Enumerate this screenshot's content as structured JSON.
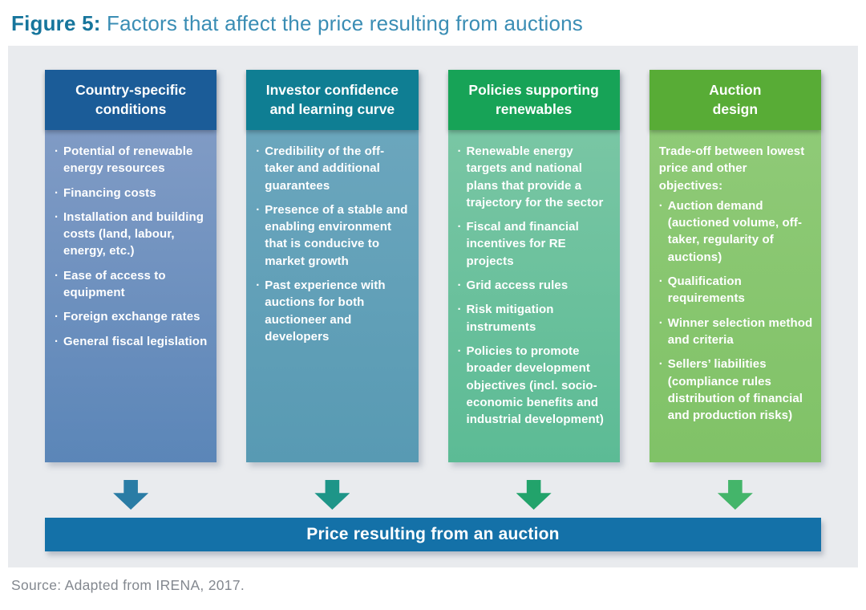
{
  "title": {
    "prefix": "Figure 5:",
    "text": " Factors that affect the price resulting from auctions"
  },
  "columns": [
    {
      "header": "Country-specific\nconditions",
      "header_color": "#1b5c98",
      "body_top_color": "#809bc5",
      "body_bottom_color": "#5b86b8",
      "arrow_color": "#2a7ca5",
      "intro": "",
      "items": [
        "Potential of renewable energy resources",
        "Financing costs",
        "Installation and building costs (land, labour, energy, etc.)",
        "Ease of access to equipment",
        "Foreign exchange rates",
        "General fiscal legislation"
      ]
    },
    {
      "header": "Investor confidence\nand learning curve",
      "header_color": "#0f7e93",
      "body_top_color": "#6ba6bd",
      "body_bottom_color": "#589ab3",
      "arrow_color": "#1e9588",
      "intro": "",
      "items": [
        "Credibility of the off-taker and additional guarantees",
        "Presence of a stable and enabling environment that is conducive to market growth",
        "Past experience with auctions for both auctioneer and developers"
      ]
    },
    {
      "header": "Policies supporting\nrenewables",
      "header_color": "#17a357",
      "body_top_color": "#79c6a4",
      "body_bottom_color": "#5cbb95",
      "arrow_color": "#22a36b",
      "intro": "",
      "items": [
        "Renewable energy targets and national plans that provide a trajectory for the sector",
        "Fiscal and financial incentives for RE projects",
        "Grid access rules",
        "Risk mitigation instruments",
        "Policies to promote broader development objectives (incl. socio-economic benefits and industrial development)"
      ]
    },
    {
      "header": "Auction\ndesign",
      "header_color": "#58ac36",
      "body_top_color": "#8fca77",
      "body_bottom_color": "#80c267",
      "arrow_color": "#44b56a",
      "intro": "Trade-off between lowest price and other objectives:",
      "items": [
        "Auction demand (auctioned volume, off-taker, regularity of auctions)",
        "Qualification requirements",
        "Winner selection method and criteria",
        "Sellers’ liabilities (compliance rules distribution of financial and production risks)"
      ]
    }
  ],
  "result_bar": {
    "label": "Price resulting from an auction",
    "color": "#1471a8"
  },
  "source": "Source: Adapted from IRENA, 2017."
}
